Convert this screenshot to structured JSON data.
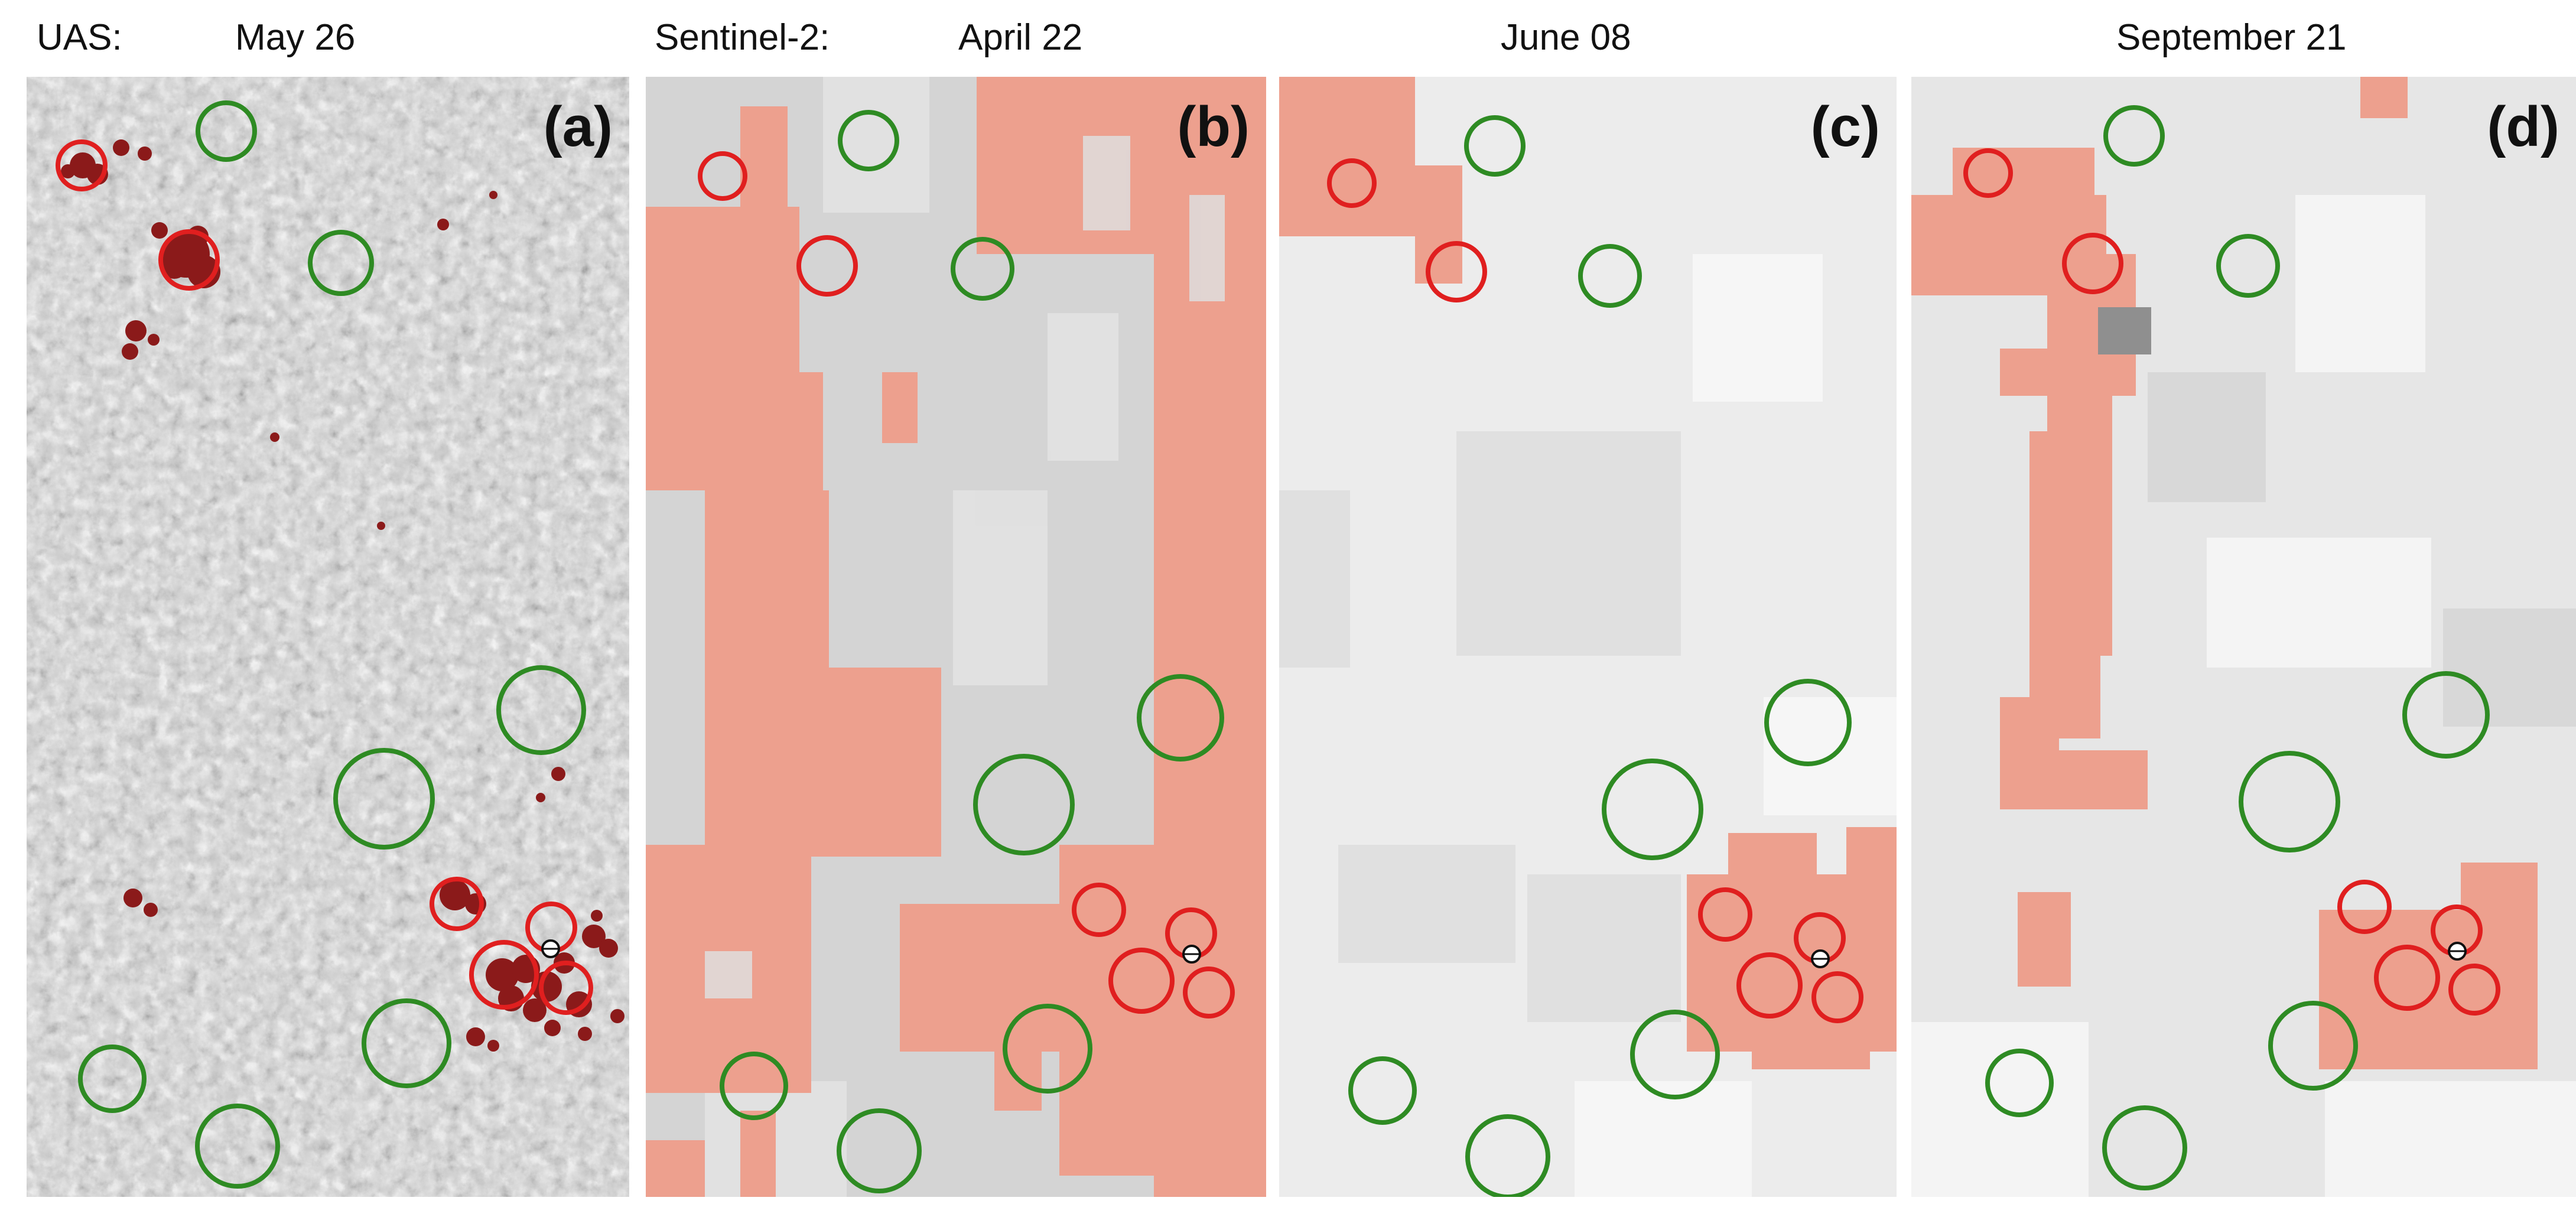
{
  "header": {
    "uas_label": "UAS:",
    "uas_date": "May 26",
    "s2_label": "Sentinel-2:",
    "s2_date_b": "April 22",
    "date_c": "June 08",
    "date_d": "September 21"
  },
  "panels": [
    {
      "id": "a",
      "label": "(a)"
    },
    {
      "id": "b",
      "label": "(b)"
    },
    {
      "id": "c",
      "label": "(c)"
    },
    {
      "id": "d",
      "label": "(d)"
    }
  ],
  "colors": {
    "red_circle": "#e01f1f",
    "green_circle": "#2e8b23",
    "damage_overlay": "#f08c78",
    "infested_tree": "#8b1a1a",
    "background": "#ffffff"
  }
}
